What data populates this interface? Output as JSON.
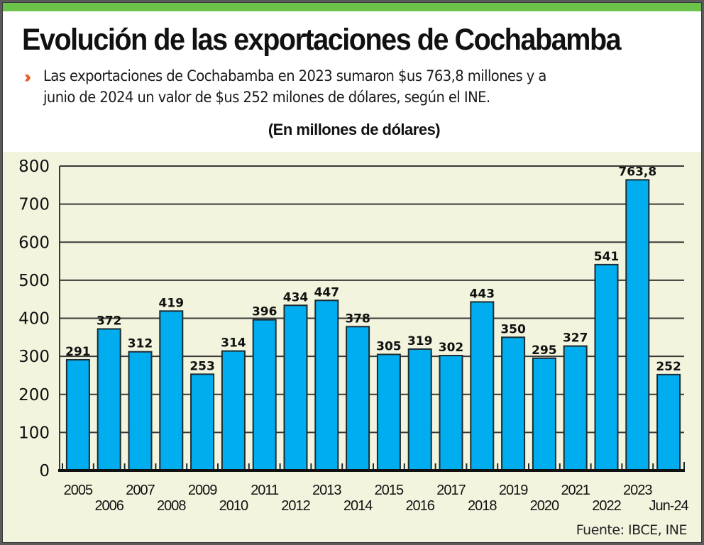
{
  "header": {
    "title": "Evolución de las exportaciones de Cochabamba",
    "bullet_icon": "double-chevron-right-icon",
    "subtitle_line1": "Las exportaciones de Cochabamba en 2023 sumaron $us 763,8 millones  y a",
    "subtitle_line2": "junio de 2024 un valor de $us 252 milones de dólares, según el INE.",
    "units": "(En millones de dólares)"
  },
  "footer": {
    "source": "Fuente: IBCE, INE"
  },
  "colors": {
    "accent_green": "#6cc24a",
    "bar_fill": "#00aeef",
    "plot_background": "#f2f4dd",
    "bullet": "#e8622e"
  },
  "chart_data": {
    "type": "bar",
    "title": "Evolución de las exportaciones de Cochabamba",
    "subtitle": "(En millones de dólares)",
    "xlabel": "",
    "ylabel": "",
    "categories": [
      "2005",
      "2006",
      "2007",
      "2008",
      "2009",
      "2010",
      "2011",
      "2012",
      "2013",
      "2014",
      "2015",
      "2016",
      "2017",
      "2018",
      "2019",
      "2020",
      "2021",
      "2022",
      "2023",
      "Jun-24"
    ],
    "values": [
      291,
      372,
      312,
      419,
      253,
      314,
      396,
      434,
      447,
      378,
      305,
      319,
      302,
      443,
      350,
      295,
      327,
      541,
      763.8,
      252
    ],
    "data_labels": [
      "291",
      "372",
      "312",
      "419",
      "253",
      "314",
      "396",
      "434",
      "447",
      "378",
      "305",
      "319",
      "302",
      "443",
      "350",
      "295",
      "327",
      "541",
      "763,8",
      "252"
    ],
    "ylim": [
      0,
      800
    ],
    "yticks": [
      0,
      100,
      200,
      300,
      400,
      500,
      600,
      700,
      800
    ],
    "ytick_labels": [
      "0",
      "100",
      "200",
      "300",
      "400",
      "500",
      "600",
      "700",
      "800"
    ],
    "grid": true,
    "legend": "none",
    "source": "Fuente: IBCE, INE"
  }
}
